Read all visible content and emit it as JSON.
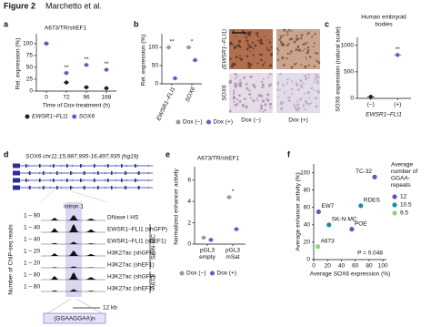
{
  "header": {
    "figure": "Figure 2",
    "authors": "Marchetto et al."
  },
  "chart_data": [
    {
      "type": "dot",
      "panel": "a",
      "title": "A673/TR/shEF1",
      "y_label": "Rel. expression (%)",
      "x_label": "Time of Dox-treatment (h)",
      "categories": [
        "0",
        "72",
        "96",
        "168"
      ],
      "ylim": [
        0,
        115
      ],
      "yticks": [
        0,
        25,
        50,
        75,
        100
      ],
      "series": [
        {
          "name": "EWSR1–FLI1",
          "color": "#222222",
          "values": [
            100,
            18,
            8,
            6
          ]
        },
        {
          "name": "SOX6",
          "color": "#5b5fc7",
          "values": [
            100,
            38,
            55,
            45
          ]
        }
      ],
      "significance": [
        null,
        "**",
        "**",
        "**"
      ]
    },
    {
      "type": "dot",
      "panel": "b",
      "y_label": "Rel. expression (%)",
      "categories": [
        "EWSR1–FLI1",
        "SOX6"
      ],
      "ylim": [
        0,
        130
      ],
      "yticks": [
        0,
        50,
        100
      ],
      "series": [
        {
          "name": "Dox (−)",
          "color": "#999999",
          "values": [
            100,
            100
          ]
        },
        {
          "name": "Dox (+)",
          "color": "#5b5fc7",
          "values": [
            15,
            65
          ]
        }
      ],
      "significance": [
        "**",
        "*"
      ]
    },
    {
      "type": "image",
      "row_labels": [
        "(EWSR1–FLI1)",
        "SOX6"
      ],
      "column_labels": [
        "Dox (−)",
        "Dox (+)"
      ]
    },
    {
      "type": "dot",
      "panel": "c",
      "title": [
        "Human embryoid",
        "bodies"
      ],
      "y_label": "SOX6 expression (natural scale)",
      "x_label": "EWSR1–FLI1",
      "categories": [
        "(−)",
        "(+)"
      ],
      "ylim": [
        0,
        1100
      ],
      "yticks": [
        0,
        500,
        1000
      ],
      "colors": [
        "#222222",
        "#5b5fc7"
      ],
      "values": [
        30,
        820
      ],
      "significance": [
        null,
        "**"
      ]
    },
    {
      "type": "genome-track",
      "panel": "d",
      "title": "SOX6 chr11:15,987,995-16,497,935 (hg19)",
      "highlight_label": "Intron 1",
      "y_label": "Number of ChIP-seq reads",
      "tracks": [
        {
          "range": "1 – 90",
          "name": "DNase I HS"
        },
        {
          "range": "1 – 40",
          "name": "EWSR1–FLI1 (shGFP)"
        },
        {
          "range": "1 – 40",
          "name": "EWSR1–FLI1 (shEF1)"
        },
        {
          "range": "1 – 20",
          "name": "H3K27ac (shGFP)"
        },
        {
          "range": "1 – 20",
          "name": "H3K27ac (shEF1)"
        },
        {
          "range": "1 – 80",
          "name": "H3K27ac (shGFP)"
        },
        {
          "range": "1 – 80",
          "name": "H3K27ac (shEF1)"
        }
      ],
      "groups": [
        "SK-N-MC",
        "A673"
      ],
      "scale_bar": "12 kb",
      "motif": "(GGAAGGAA)n"
    },
    {
      "type": "dot",
      "panel": "e",
      "title": "A673/TR/shEF1",
      "y_label": "Normalized enhancer activity",
      "categories": [
        [
          "pGL3",
          "empty"
        ],
        [
          "pGL3",
          "mSat"
        ]
      ],
      "ylim": [
        0,
        7
      ],
      "yticks": [
        0,
        2,
        4,
        6
      ],
      "series": [
        {
          "name": "Dox (−)",
          "color": "#999999",
          "values": [
            0.6,
            4.4
          ]
        },
        {
          "name": "Dox (+)",
          "color": "#5b5fc7",
          "values": [
            0.4,
            1.4
          ]
        }
      ],
      "significance": [
        null,
        "*"
      ]
    },
    {
      "type": "scatter",
      "panel": "f",
      "x_label": "Average SOX6 expression (%)",
      "y_label": "Average enhancer activity (%)",
      "xlim": [
        0,
        105
      ],
      "ylim": [
        0,
        110
      ],
      "xticks": [
        0,
        20,
        40,
        60,
        80,
        100
      ],
      "yticks": [
        0,
        20,
        40,
        60,
        80,
        100
      ],
      "annotation": "P = 0.048",
      "points": [
        {
          "name": "TC-32",
          "x": 88,
          "y": 95,
          "repeats": 12
        },
        {
          "name": "RDES",
          "x": 68,
          "y": 62,
          "repeats": 10.5
        },
        {
          "name": "EW7",
          "x": 7,
          "y": 55,
          "repeats": 12
        },
        {
          "name": "SK-N-MC",
          "x": 22,
          "y": 40,
          "repeats": 10.5
        },
        {
          "name": "POE",
          "x": 55,
          "y": 35,
          "repeats": 12
        },
        {
          "name": "A673",
          "x": 6,
          "y": 15,
          "repeats": 9.5
        }
      ],
      "repeat_legend": {
        "title": [
          "Average",
          "number of",
          "GGAA-",
          "repeats"
        ],
        "values": [
          12,
          10.5,
          9.5
        ],
        "colors": [
          "#6a4fc2",
          "#1f8f95",
          "#8fd27a"
        ]
      }
    }
  ]
}
